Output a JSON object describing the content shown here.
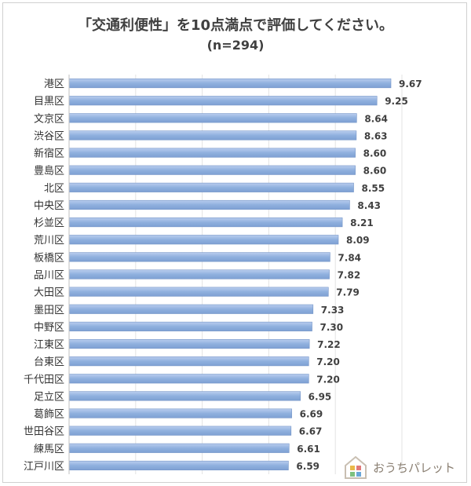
{
  "chart_data": {
    "type": "bar",
    "orientation": "horizontal",
    "title": "「交通利便性」を10点満点で評価してください。",
    "subtitle": "(n=294)",
    "categories": [
      "港区",
      "目黒区",
      "文京区",
      "渋谷区",
      "新宿区",
      "豊島区",
      "北区",
      "中央区",
      "杉並区",
      "荒川区",
      "板橋区",
      "品川区",
      "大田区",
      "墨田区",
      "中野区",
      "江東区",
      "台東区",
      "千代田区",
      "足立区",
      "葛飾区",
      "世田谷区",
      "練馬区",
      "江戸川区"
    ],
    "values": [
      9.67,
      9.25,
      8.64,
      8.63,
      8.6,
      8.6,
      8.55,
      8.43,
      8.21,
      8.09,
      7.84,
      7.82,
      7.79,
      7.33,
      7.3,
      7.22,
      7.2,
      7.2,
      6.95,
      6.69,
      6.67,
      6.61,
      6.59
    ],
    "value_labels": [
      "9.67",
      "9.25",
      "8.64",
      "8.63",
      "8.60",
      "8.60",
      "8.55",
      "8.43",
      "8.21",
      "8.09",
      "7.84",
      "7.82",
      "7.79",
      "7.33",
      "7.30",
      "7.22",
      "7.20",
      "7.20",
      "6.95",
      "6.69",
      "6.67",
      "6.61",
      "6.59"
    ],
    "xlim": [
      0,
      10
    ],
    "grid": true,
    "bar_color": "#8fb0de"
  },
  "logo": {
    "text": "おうちパレット",
    "icon": "house-icon"
  }
}
